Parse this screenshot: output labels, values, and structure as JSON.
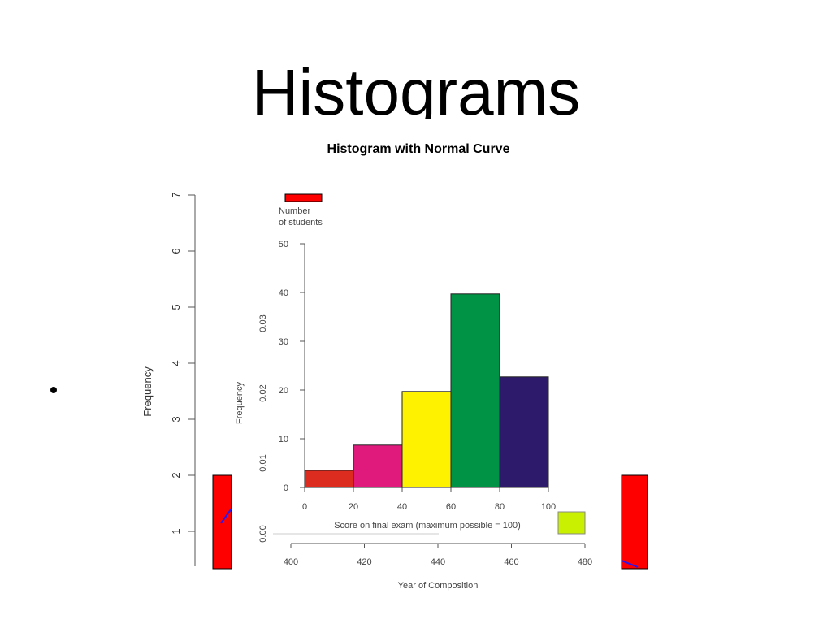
{
  "slide": {
    "title": "Histograms",
    "bullet_text": ""
  },
  "back_chart": {
    "title": "Histogram with Normal Curve",
    "ylabel": "Frequency",
    "xlabel": "Year of Composition",
    "y_ticks": [
      "1",
      "2",
      "3",
      "4",
      "5",
      "6",
      "7"
    ],
    "x_ticks": [
      "400",
      "420",
      "440",
      "460",
      "480"
    ],
    "density_ticks": [
      "0.00",
      "0.01",
      "0.02",
      "0.03"
    ],
    "bar_color": "#ff0000",
    "curve_color": "#1a1aff"
  },
  "chart_data": {
    "type": "bar",
    "title": "",
    "ylabel_caption": "Number of students",
    "ylabel_rotated": "Frequency",
    "xlabel": "Score on final exam (maximum possible = 100)",
    "bins": [
      {
        "from": 0,
        "to": 20,
        "value": 3.5,
        "color": "#dc2b1f"
      },
      {
        "from": 20,
        "to": 40,
        "value": 8.7,
        "color": "#e01a7d"
      },
      {
        "from": 40,
        "to": 60,
        "value": 19.7,
        "color": "#fff200"
      },
      {
        "from": 60,
        "to": 80,
        "value": 39.7,
        "color": "#009245"
      },
      {
        "from": 80,
        "to": 100,
        "value": 22.7,
        "color": "#2e1a6b"
      }
    ],
    "x_ticks": [
      "0",
      "20",
      "40",
      "60",
      "80",
      "100"
    ],
    "y_ticks": [
      "0",
      "10",
      "20",
      "30",
      "40",
      "50"
    ],
    "ylim": [
      0,
      50
    ],
    "xlim": [
      0,
      100
    ],
    "legend_color": "#ff0000",
    "accent_color": "#c8f000"
  }
}
